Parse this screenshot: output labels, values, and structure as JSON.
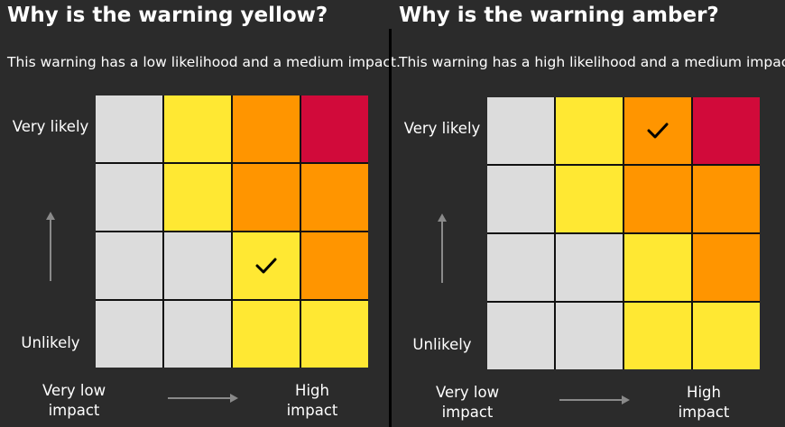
{
  "panels": [
    {
      "title": "Why is the warning yellow?",
      "description": "This warning has a low likelihood and a medium impact.",
      "y_axis_top_label": "Very likely",
      "y_axis_bottom_label": "Unlikely",
      "x_axis_left_label": "Very low impact",
      "x_axis_right_label": "High impact",
      "matrix": [
        [
          "grey",
          "yellow",
          "orange",
          "red"
        ],
        [
          "grey",
          "yellow",
          "orange",
          "orange"
        ],
        [
          "grey",
          "grey",
          "yellow",
          "orange"
        ],
        [
          "grey",
          "grey",
          "yellow",
          "yellow"
        ]
      ],
      "checked_cell": {
        "row": 2,
        "col": 2
      }
    },
    {
      "title": "Why is the warning amber?",
      "description": "This warning has a high likelihood and a medium impact.",
      "y_axis_top_label": "Very likely",
      "y_axis_bottom_label": "Unlikely",
      "x_axis_left_label": "Very low impact",
      "x_axis_right_label": "High impact",
      "matrix": [
        [
          "grey",
          "yellow",
          "orange",
          "red"
        ],
        [
          "grey",
          "yellow",
          "orange",
          "orange"
        ],
        [
          "grey",
          "grey",
          "yellow",
          "orange"
        ],
        [
          "grey",
          "grey",
          "yellow",
          "yellow"
        ]
      ],
      "checked_cell": {
        "row": 0,
        "col": 2
      }
    }
  ],
  "colors": {
    "background": "#2b2b2b",
    "grey": "#dcdcdc",
    "yellow": "#ffe833",
    "orange": "#ff9500",
    "red": "#d10a3a",
    "arrow": "#8a8a8a"
  }
}
